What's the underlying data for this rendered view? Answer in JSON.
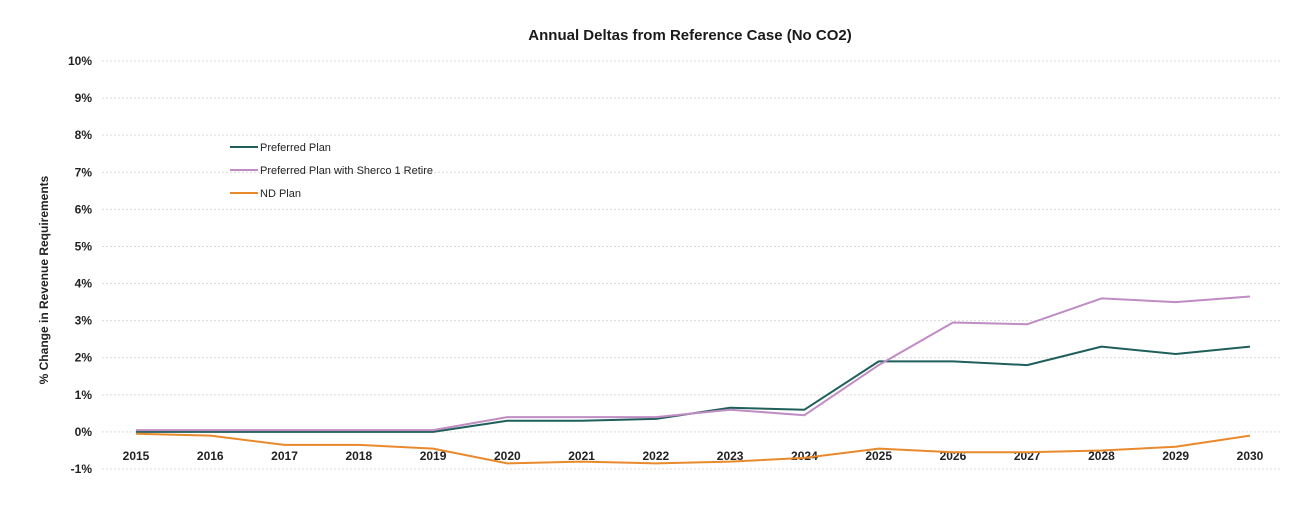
{
  "chart_data": {
    "type": "line",
    "title": "Annual Deltas from Reference Case (No CO2)",
    "xlabel": "",
    "ylabel": "% Change in Revenue Requirements",
    "x": [
      "2015",
      "2016",
      "2017",
      "2018",
      "2019",
      "2020",
      "2021",
      "2022",
      "2023",
      "2024",
      "2025",
      "2026",
      "2027",
      "2028",
      "2029",
      "2030"
    ],
    "ylim": [
      -1,
      10
    ],
    "yticks": [
      -1,
      0,
      1,
      2,
      3,
      4,
      5,
      6,
      7,
      8,
      9,
      10
    ],
    "ytick_labels": [
      "-1%",
      "0%",
      "1%",
      "2%",
      "3%",
      "4%",
      "5%",
      "6%",
      "7%",
      "8%",
      "9%",
      "10%"
    ],
    "grid": true,
    "legend_position": "top-left",
    "series": [
      {
        "name": "Preferred Plan",
        "color": "#1f5f5b",
        "values": [
          0.0,
          0.0,
          0.0,
          0.0,
          0.0,
          0.3,
          0.3,
          0.35,
          0.65,
          0.6,
          1.9,
          1.9,
          1.8,
          2.3,
          2.1,
          2.3
        ]
      },
      {
        "name": "Preferred Plan with Sherco 1 Retire",
        "color": "#c08cc4",
        "values": [
          0.05,
          0.05,
          0.05,
          0.05,
          0.05,
          0.4,
          0.4,
          0.4,
          0.6,
          0.45,
          1.8,
          2.95,
          2.9,
          3.6,
          3.5,
          3.65
        ]
      },
      {
        "name": "ND Plan",
        "color": "#e88a2c",
        "values": [
          -0.05,
          -0.1,
          -0.35,
          -0.35,
          -0.45,
          -0.85,
          -0.8,
          -0.85,
          -0.8,
          -0.7,
          -0.45,
          -0.55,
          -0.55,
          -0.5,
          -0.4,
          -0.1
        ]
      }
    ]
  }
}
